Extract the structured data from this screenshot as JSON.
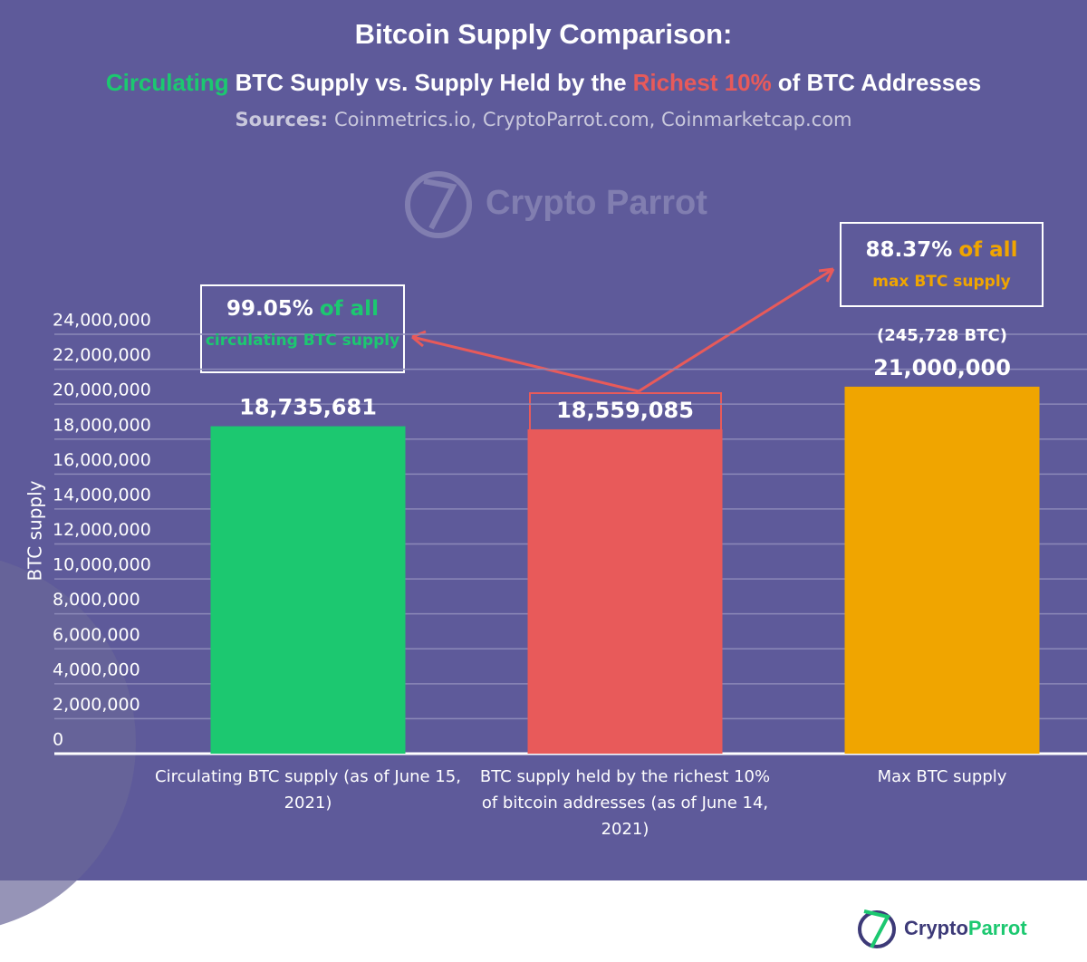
{
  "chart_data": {
    "type": "bar",
    "title": "Bitcoin Supply Comparison:",
    "subtitle": [
      {
        "text": "Circulating",
        "color": "#1cc870"
      },
      {
        "text": "BTC Supply vs. Supply Held by the",
        "color": "#ffffff"
      },
      {
        "text": "Richest 10%",
        "color": "#e85a5a"
      },
      {
        "text": "of BTC Addresses",
        "color": "#ffffff"
      }
    ],
    "source_label": "Sources:",
    "sources": "Coinmetrics.io, CryptoParrot.com, Coinmarketcap.com",
    "watermark": "Crypto Parrot",
    "ylabel": "BTC supply",
    "categories": [
      "Circulating BTC supply (as of June 15, 2021)",
      "BTC supply held by the richest 10% of bitcoin addresses (as of June 14, 2021)",
      "Max BTC supply"
    ],
    "values": [
      18735681,
      18559085,
      21000000
    ],
    "value_labels": [
      "18,735,681",
      "18,559,085",
      "21,000,000"
    ],
    "colors": [
      "#1cc870",
      "#e85a5a",
      "#f0a500"
    ],
    "ylim": [
      0,
      24000000
    ],
    "yticks": [
      0,
      {
        "value": 2000000,
        "label": "2,000,000"
      },
      {
        "value": 4000000,
        "label": "4,000,000"
      },
      {
        "value": 6000000,
        "label": "6,000,000"
      },
      {
        "value": 8000000,
        "label": "8,000,000"
      },
      {
        "value": 10000000,
        "label": "10,000,000"
      },
      {
        "value": 12000000,
        "label": "12,000,000"
      },
      {
        "value": 14000000,
        "label": "14,000,000"
      },
      {
        "value": 16000000,
        "label": "16,000,000"
      },
      {
        "value": 18000000,
        "label": "18,000,000"
      },
      {
        "value": 20000000,
        "label": "20,000,000"
      },
      {
        "value": 22000000,
        "label": "22,000,000"
      },
      {
        "value": 24000000,
        "label": "24,000,000"
      }
    ],
    "grid": true,
    "annotations": [
      {
        "parts": [
          {
            "text": "99.05%",
            "color": "#ffffff"
          },
          {
            "text": "of all",
            "color": "#1cc870"
          }
        ],
        "caption": "circulating BTC supply",
        "caption_color": "#1cc870"
      },
      {
        "parts": [
          {
            "text": "88.37%",
            "color": "#ffffff"
          },
          {
            "text": "of all",
            "color": "#f0a500"
          }
        ],
        "caption": "max BTC supply",
        "caption_color": "#f0a500"
      }
    ],
    "note": "(245,728 BTC)",
    "footer_logo": [
      {
        "text": "Crypto",
        "color": "#3d3a78"
      },
      {
        "text": "Parrot",
        "color": "#1cc870"
      }
    ]
  }
}
